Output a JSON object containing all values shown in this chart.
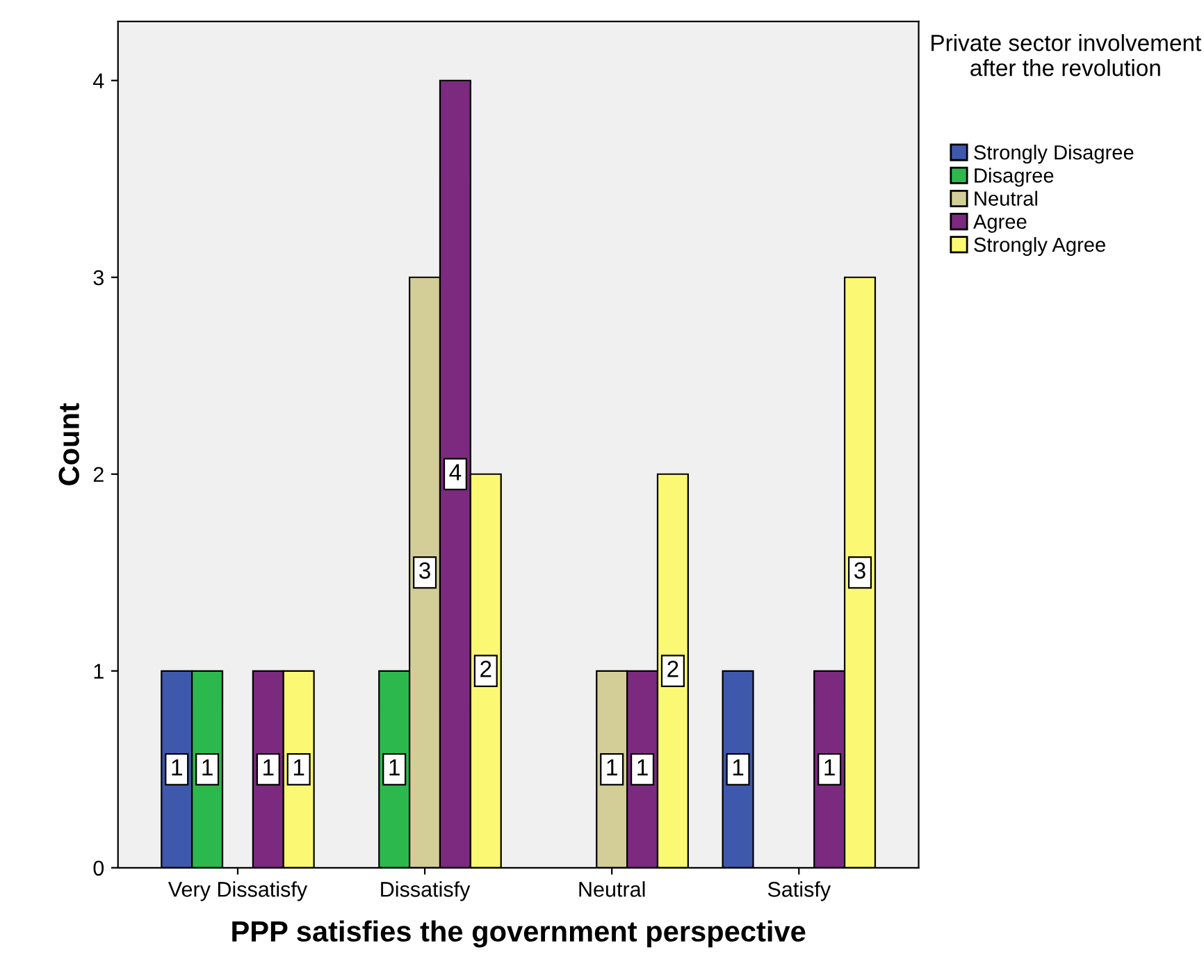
{
  "chart_data": {
    "type": "bar",
    "xlabel": "PPP satisfies the government perspective",
    "ylabel": "Count",
    "legend_title": "Private sector involvement after the revolution",
    "categories": [
      "Very Dissatisfy",
      "Dissatisfy",
      "Neutral",
      "Satisfy"
    ],
    "series": [
      {
        "name": "Strongly Disagree",
        "color": "#3e58ac",
        "values": [
          1,
          null,
          null,
          1
        ]
      },
      {
        "name": "Disagree",
        "color": "#2db84d",
        "values": [
          1,
          1,
          null,
          null
        ]
      },
      {
        "name": "Neutral",
        "color": "#d3ce97",
        "values": [
          null,
          3,
          1,
          null
        ]
      },
      {
        "name": "Agree",
        "color": "#7b2a7f",
        "values": [
          1,
          4,
          1,
          1
        ]
      },
      {
        "name": "Strongly Agree",
        "color": "#fbf873",
        "values": [
          1,
          2,
          2,
          3
        ]
      }
    ],
    "ylim": [
      0,
      4.3
    ],
    "yticks": [
      0,
      1,
      2,
      3,
      4
    ],
    "grid": false,
    "legend": "top right",
    "data_labels": true
  }
}
